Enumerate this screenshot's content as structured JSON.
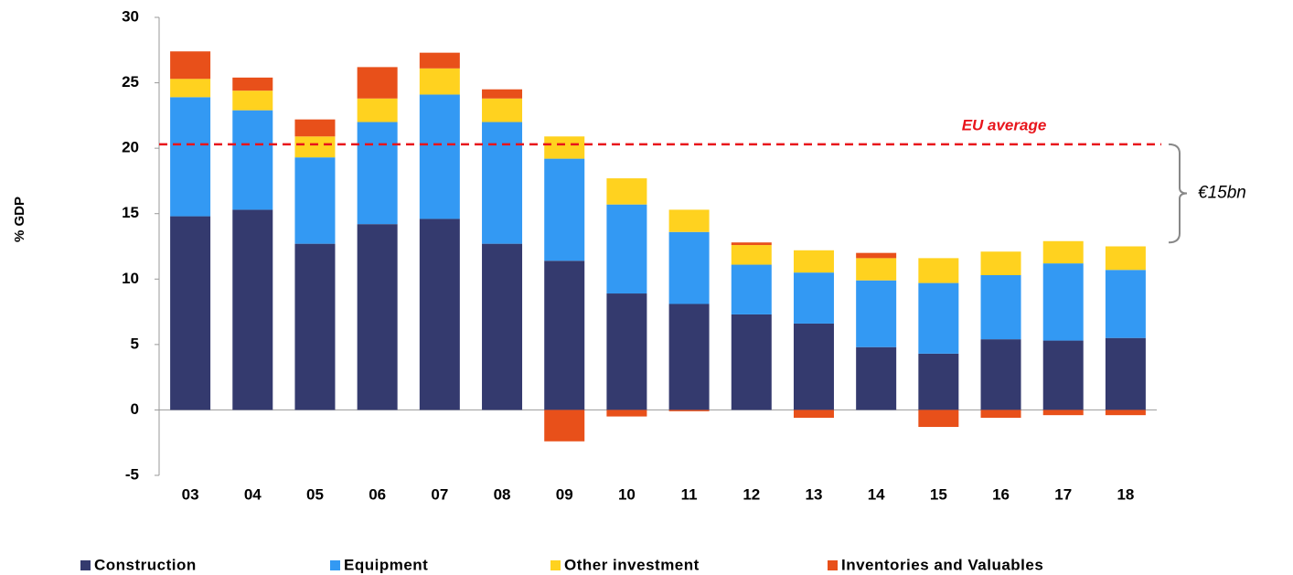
{
  "chart_data": {
    "type": "stacked_bar",
    "y_label": "% GDP",
    "categories": [
      "03",
      "04",
      "05",
      "06",
      "07",
      "08",
      "09",
      "10",
      "11",
      "12",
      "13",
      "14",
      "15",
      "16",
      "17",
      "18"
    ],
    "series": [
      {
        "name": "Construction",
        "color": "#343a6e",
        "values": [
          14.8,
          15.3,
          12.7,
          14.2,
          14.6,
          12.7,
          11.4,
          8.9,
          8.1,
          7.3,
          6.6,
          4.8,
          4.3,
          5.4,
          5.3,
          5.5
        ]
      },
      {
        "name": "Equipment",
        "color": "#3399f3",
        "values": [
          9.1,
          7.6,
          6.6,
          7.8,
          9.5,
          9.3,
          7.8,
          6.8,
          5.5,
          3.8,
          3.9,
          5.1,
          5.4,
          4.9,
          5.9,
          5.2
        ]
      },
      {
        "name": "Other investment",
        "color": "#ffd21f",
        "values": [
          1.4,
          1.5,
          1.6,
          1.8,
          2.0,
          1.8,
          1.7,
          2.0,
          1.7,
          1.5,
          1.7,
          1.7,
          1.9,
          1.8,
          1.7,
          1.8
        ]
      },
      {
        "name": "Inventories and Valuables",
        "color": "#e8501a",
        "values": [
          2.1,
          1.0,
          1.3,
          2.4,
          1.2,
          0.7,
          -2.4,
          -0.5,
          -0.1,
          0.2,
          -0.6,
          0.4,
          -1.3,
          -0.6,
          -0.4,
          -0.4
        ]
      }
    ],
    "ylim": [
      -5,
      30
    ],
    "yticks": [
      -5,
      0,
      5,
      10,
      15,
      20,
      25,
      30
    ],
    "reference_line": {
      "label": "EU average",
      "value": 20.3,
      "color": "#e8141b"
    },
    "bracket": {
      "label": "€15bn",
      "values": [
        12.8,
        20.3
      ]
    },
    "legend": "bottom"
  }
}
